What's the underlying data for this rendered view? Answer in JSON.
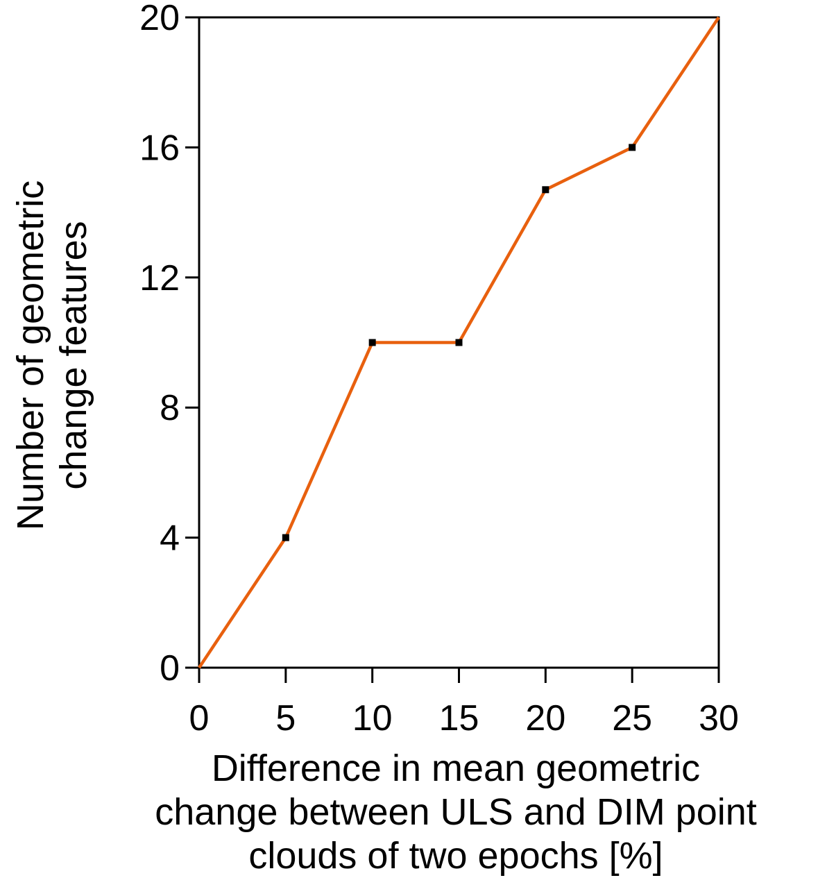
{
  "chart_data": {
    "type": "line",
    "title": "",
    "xlabel_lines": [
      "Difference in mean geometric",
      "change between ULS and DIM point",
      "clouds of two epochs [%]"
    ],
    "ylabel_lines": [
      "Number of geometric",
      "change features"
    ],
    "xlim": [
      0,
      30
    ],
    "ylim": [
      0,
      20
    ],
    "xticks": [
      0,
      5,
      10,
      15,
      20,
      25,
      30
    ],
    "yticks": [
      0,
      4,
      8,
      12,
      16,
      20
    ],
    "grid": false,
    "series": [
      {
        "color": "#E8600E",
        "marker_color": "#000000",
        "points": [
          {
            "x": 0,
            "y": 0
          },
          {
            "x": 5,
            "y": 4
          },
          {
            "x": 10,
            "y": 10
          },
          {
            "x": 15,
            "y": 10
          },
          {
            "x": 20,
            "y": 14.7
          },
          {
            "x": 25,
            "y": 16
          },
          {
            "x": 30,
            "y": 20
          }
        ],
        "markers_at": [
          5,
          10,
          15,
          20,
          25
        ]
      }
    ]
  }
}
